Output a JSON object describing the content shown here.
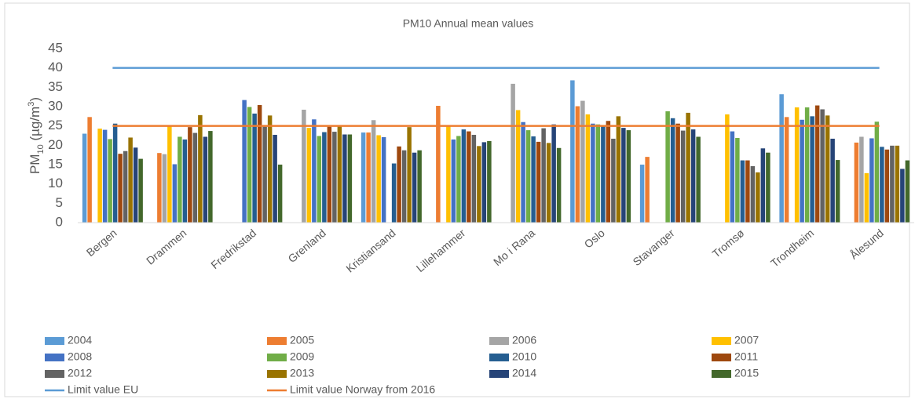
{
  "chart_data": {
    "type": "bar",
    "title": "PM10 Annual mean values",
    "ylabel": [
      "PM",
      "10",
      " (µg/m",
      "3",
      ")"
    ],
    "categories": [
      "Bergen",
      "Drammen",
      "Fredrikstad",
      "Grenland",
      "Kristiansand",
      "Lillehammer",
      "Mo i Rana",
      "Oslo",
      "Stavanger",
      "Tromsø",
      "Trondheim",
      "Ålesund"
    ],
    "series": [
      {
        "name": "2004",
        "color": "#5b9bd5",
        "values": [
          23,
          null,
          null,
          null,
          23.3,
          null,
          null,
          36.8,
          15,
          null,
          33.2,
          null
        ]
      },
      {
        "name": "2005",
        "color": "#ed7d31",
        "values": [
          27.3,
          18,
          null,
          null,
          23.3,
          30.2,
          null,
          30.1,
          17,
          null,
          27.3,
          20.7
        ]
      },
      {
        "name": "2006",
        "color": "#a5a5a5",
        "values": [
          null,
          17.7,
          null,
          29.2,
          26.5,
          null,
          35.9,
          31.5,
          null,
          null,
          null,
          22.2
        ]
      },
      {
        "name": "2007",
        "color": "#ffc000",
        "values": [
          24.3,
          25,
          null,
          24.5,
          22.6,
          25,
          29.1,
          28,
          null,
          28,
          29.8,
          12.8
        ]
      },
      {
        "name": "2008",
        "color": "#4472c4",
        "values": [
          24,
          15.1,
          31.7,
          26.7,
          22.1,
          21.5,
          26,
          25.6,
          null,
          23.6,
          26.6,
          21.8
        ]
      },
      {
        "name": "2009",
        "color": "#70ad47",
        "values": [
          21.6,
          22.2,
          29.9,
          22.4,
          null,
          22.4,
          23.9,
          25.4,
          28.8,
          21.9,
          29.8,
          26.1
        ]
      },
      {
        "name": "2010",
        "color": "#255e91",
        "values": [
          25.6,
          21.5,
          28.2,
          23.4,
          15.3,
          24.1,
          22.3,
          25.1,
          27,
          16.1,
          27.5,
          19.6
        ]
      },
      {
        "name": "2011",
        "color": "#9e480e",
        "values": [
          17.8,
          24.7,
          30.4,
          24.8,
          19.7,
          23.6,
          20.9,
          26.3,
          25.6,
          16.1,
          30.3,
          18.9
        ]
      },
      {
        "name": "2012",
        "color": "#636363",
        "values": [
          18.5,
          23.2,
          24.8,
          23.5,
          18.7,
          22.7,
          24.4,
          21.7,
          23.8,
          14.6,
          29.3,
          19.9
        ]
      },
      {
        "name": "2013",
        "color": "#997300",
        "values": [
          22,
          27.8,
          27.7,
          24.9,
          24.7,
          19.8,
          20.6,
          27.5,
          28.4,
          13,
          27.7,
          19.9
        ]
      },
      {
        "name": "2014",
        "color": "#264478",
        "values": [
          19.4,
          22.2,
          22.7,
          22.8,
          18.1,
          20.8,
          25.4,
          24.5,
          24.1,
          19.2,
          21.7,
          13.9
        ]
      },
      {
        "name": "2015",
        "color": "#43682b",
        "values": [
          16.5,
          23.7,
          15,
          22.8,
          18.7,
          21.1,
          19.3,
          23.9,
          22.2,
          18.1,
          16.2,
          16.1
        ]
      }
    ],
    "lines": [
      {
        "name": "Limit value EU",
        "color": "#5b9bd5",
        "value": 40
      },
      {
        "name": "Limit value Norway from 2016",
        "color": "#ed7d31",
        "value": 25
      }
    ],
    "ylim": [
      0,
      45
    ],
    "yticks": [
      0,
      5,
      10,
      15,
      20,
      25,
      30,
      35,
      40,
      45
    ],
    "grid": false
  }
}
